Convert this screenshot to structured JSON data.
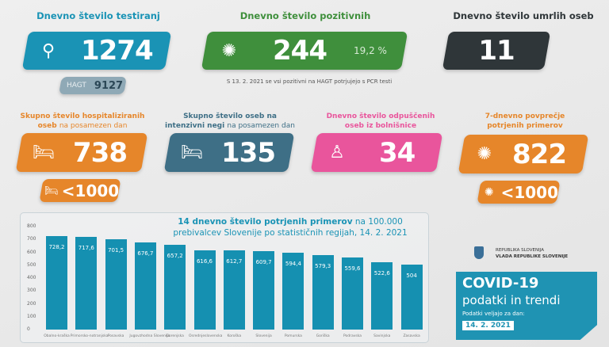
{
  "testing": {
    "title": "Dnevno število testiranj",
    "value": "1274",
    "icon": "test-kit-icon",
    "hagt_label": "HAGT",
    "hagt_value": "9127",
    "color": "#1a93b5"
  },
  "positive": {
    "title": "Dnevno število pozitivnih",
    "value": "244",
    "percent": "19,2 %",
    "icon": "virus-icon",
    "note": "S 13. 2. 2021 se vsi pozitivni na HAGT potrjujejo s PCR testi",
    "color": "#3f8f3c"
  },
  "deaths": {
    "title": "Dnevno število umrlih oseb",
    "value": "11",
    "color": "#2f3639"
  },
  "hospitalized": {
    "title_bold": "Skupno število hospitaliziranih oseb",
    "title_rest": "na posamezen dan",
    "value": "738",
    "threshold": "<1000",
    "icon": "hospital-bed-icon",
    "color": "#e6862a"
  },
  "icu": {
    "title_bold": "Skupno število oseb na intenzivni negi",
    "title_rest": "na posamezen dan",
    "value": "135",
    "icon": "hospital-bed-icon",
    "color": "#3e6f86"
  },
  "discharged": {
    "title": "Dnevno število odpuščenih oseb iz bolnišnice",
    "value": "34",
    "icon": "person-icon",
    "color": "#e9559c"
  },
  "avg7": {
    "title": "7-dnevno povprečje potrjenih primerov",
    "value": "822",
    "threshold": "<1000",
    "icon": "virus-icon",
    "color": "#e6862a"
  },
  "logo": {
    "line1": "REPUBLIKA SLOVENIJA",
    "line2": "VLADA REPUBLIKE SLOVENIJE"
  },
  "banner": {
    "title": "COVID-19",
    "subtitle": "podatki in trendi",
    "valid_label": "Podatki veljajo za dan:",
    "date": "14. 2. 2021",
    "color": "#1f93b3"
  },
  "chart_data": {
    "type": "bar",
    "title_bold": "14 dnevno število potrjenih primerov",
    "title_rest": "na 100.000 prebivalcev Slovenije po statističnih regijah, 14. 2. 2021",
    "categories": [
      "Obalno-kraška",
      "Primorsko-notranjska",
      "Posavska",
      "Jugovzhodna Slovenija",
      "Gorenjska",
      "Osrednjeslovenska",
      "Koroška",
      "Slovenija",
      "Pomurska",
      "Goriška",
      "Podravska",
      "Savinjska",
      "Zasavska"
    ],
    "values": [
      728.2,
      717.6,
      701.5,
      676.7,
      657.2,
      616.6,
      612.7,
      609.7,
      594.4,
      579.3,
      559.6,
      522.6,
      504
    ],
    "labels": [
      "728,2",
      "717,6",
      "701,5",
      "676,7",
      "657,2",
      "616,6",
      "612,7",
      "609,7",
      "594,4",
      "579,3",
      "559,6",
      "522,6",
      "504"
    ],
    "ylim": [
      0,
      800
    ],
    "yticks": [
      "0",
      "100",
      "200",
      "300",
      "400",
      "500",
      "600",
      "700",
      "800"
    ],
    "grid": false,
    "bar_color": "#1590b1"
  }
}
